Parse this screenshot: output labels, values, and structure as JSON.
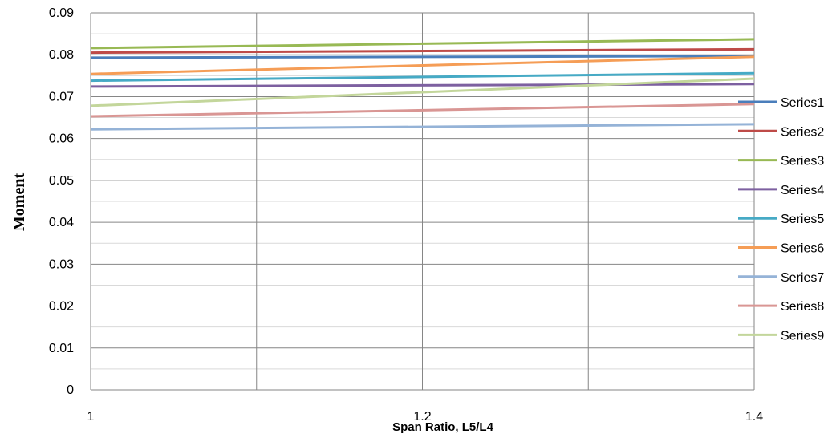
{
  "chart_data": {
    "type": "line",
    "title": "",
    "xlabel": "Span Ratio, L5/L4",
    "ylabel": "Moment",
    "x": [
      1,
      1.4
    ],
    "x_ticks": [
      "1",
      "1.2",
      "1.4"
    ],
    "y_ticks": [
      "0",
      "0.01",
      "0.02",
      "0.03",
      "0.04",
      "0.05",
      "0.06",
      "0.07",
      "0.08",
      "0.09"
    ],
    "xlim": [
      1,
      1.4
    ],
    "ylim": [
      0,
      0.09
    ],
    "grid": "on",
    "legend_position": "right",
    "series": [
      {
        "name": "Series1",
        "color": "#4A7EBB",
        "values": [
          0.0793,
          0.0797
        ]
      },
      {
        "name": "Series2",
        "color": "#BE4B48",
        "values": [
          0.0805,
          0.0813
        ]
      },
      {
        "name": "Series3",
        "color": "#98B954",
        "values": [
          0.0816,
          0.0837
        ]
      },
      {
        "name": "Series4",
        "color": "#7D60A0",
        "values": [
          0.0724,
          0.073
        ]
      },
      {
        "name": "Series5",
        "color": "#46AAC5",
        "values": [
          0.0738,
          0.0756
        ]
      },
      {
        "name": "Series6",
        "color": "#F59D56",
        "values": [
          0.0754,
          0.0795
        ]
      },
      {
        "name": "Series7",
        "color": "#95B3D7",
        "values": [
          0.0622,
          0.0634
        ]
      },
      {
        "name": "Series8",
        "color": "#D99694",
        "values": [
          0.0653,
          0.0682
        ]
      },
      {
        "name": "Series9",
        "color": "#C3D69B",
        "values": [
          0.0678,
          0.0743
        ]
      }
    ]
  }
}
